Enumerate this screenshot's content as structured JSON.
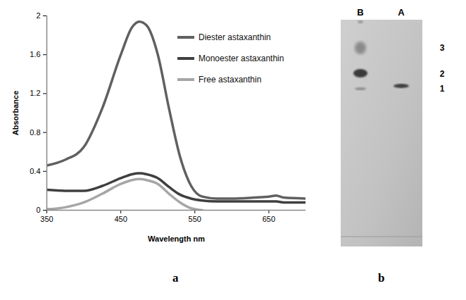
{
  "chart_data": {
    "type": "line",
    "xlabel": "Wavelength nm",
    "ylabel": "Absorbance",
    "x": [
      350,
      375,
      400,
      425,
      450,
      465,
      475,
      485,
      500,
      515,
      530,
      545,
      560,
      580,
      600,
      630,
      650,
      660,
      670,
      700
    ],
    "series": [
      {
        "name": "Diester astaxanthin",
        "color": "#606060",
        "values": [
          0.46,
          0.52,
          0.65,
          1.05,
          1.6,
          1.88,
          1.94,
          1.9,
          1.6,
          1.05,
          0.55,
          0.25,
          0.14,
          0.12,
          0.12,
          0.13,
          0.14,
          0.15,
          0.13,
          0.12
        ]
      },
      {
        "name": "Monoester astaxanthin",
        "color": "#3f3f3f",
        "values": [
          0.21,
          0.2,
          0.2,
          0.25,
          0.33,
          0.37,
          0.38,
          0.37,
          0.33,
          0.24,
          0.16,
          0.12,
          0.1,
          0.09,
          0.09,
          0.09,
          0.09,
          0.09,
          0.08,
          0.08
        ]
      },
      {
        "name": "Free astaxanthin",
        "color": "#a6a6a6",
        "values": [
          0.01,
          0.03,
          0.08,
          0.17,
          0.27,
          0.31,
          0.32,
          0.31,
          0.27,
          0.17,
          0.08,
          0.02,
          0,
          null,
          null,
          null,
          null,
          null,
          null,
          null
        ]
      }
    ],
    "xlim": [
      350,
      700
    ],
    "xticks": [
      350,
      450,
      550,
      650
    ],
    "ylim": [
      0,
      2
    ],
    "yticks": [
      0,
      0.4,
      0.8,
      1.2,
      1.6,
      2
    ],
    "grid": false,
    "legend": "top-right"
  },
  "panel_labels": [
    "a",
    "b"
  ],
  "tlc_plate": {
    "lanes": [
      "B",
      "A"
    ],
    "bands": [
      "3",
      "2",
      "1"
    ]
  }
}
